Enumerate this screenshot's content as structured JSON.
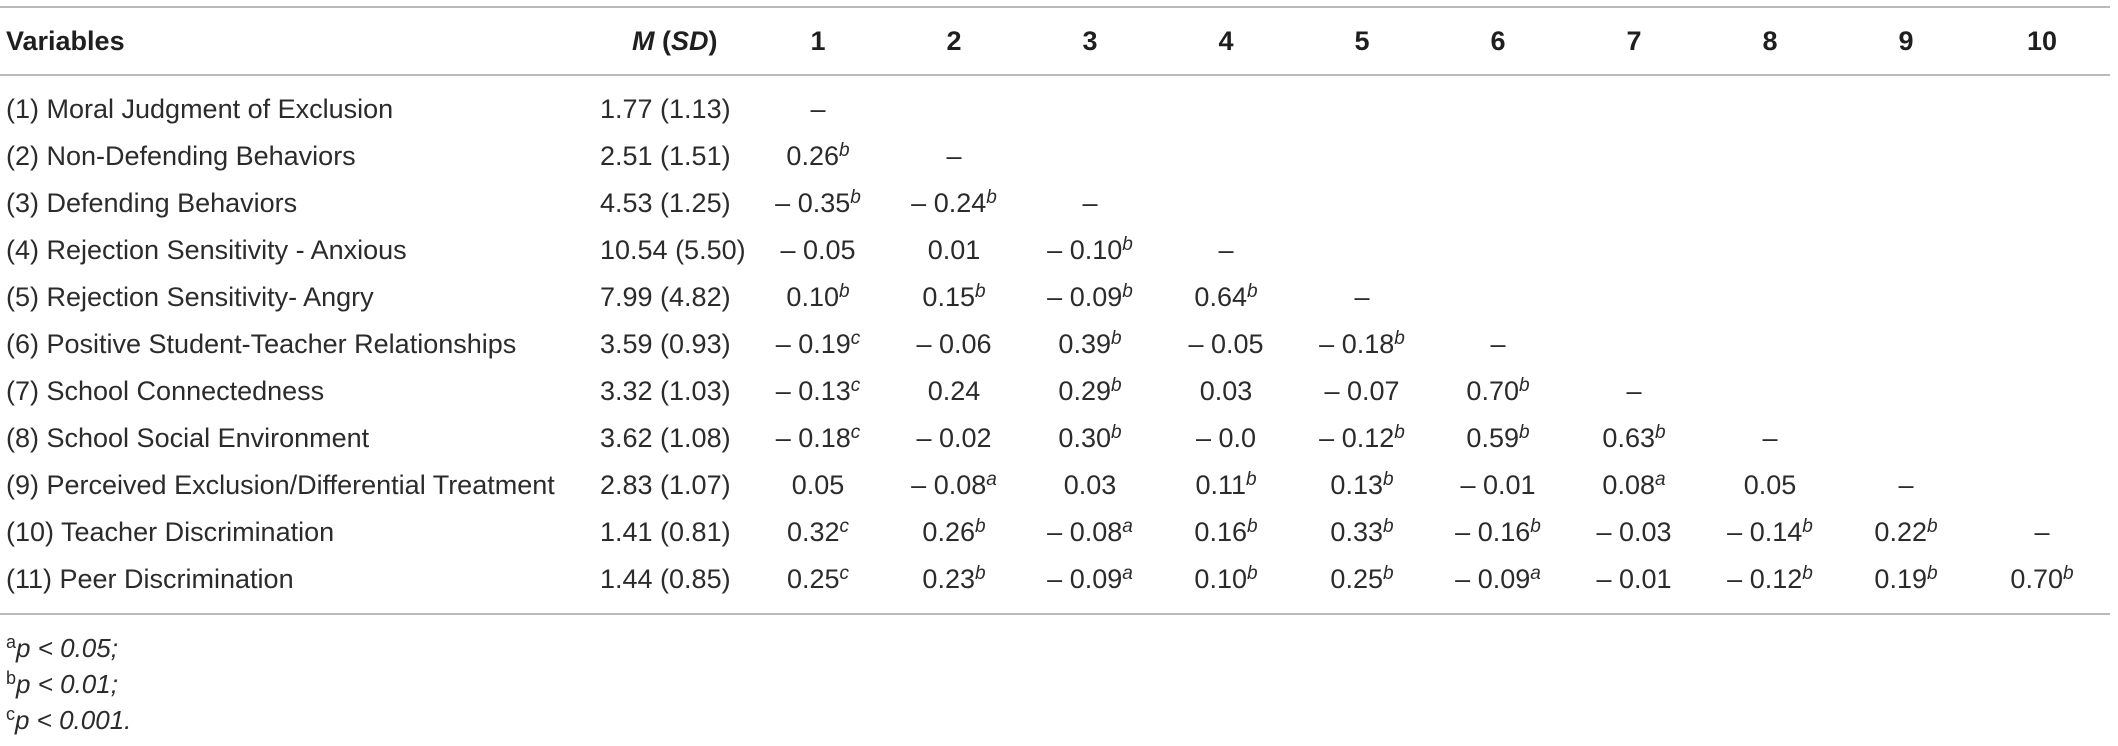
{
  "table": {
    "header": {
      "variables": "Variables",
      "m_label": "M",
      "sd_label": "SD",
      "columns": [
        "1",
        "2",
        "3",
        "4",
        "5",
        "6",
        "7",
        "8",
        "9",
        "10"
      ]
    },
    "rows": [
      {
        "label": "(1) Moral Judgment of Exclusion",
        "msd": "1.77 (1.13)",
        "cells": [
          {
            "v": "–",
            "s": ""
          }
        ]
      },
      {
        "label": "(2) Non-Defending Behaviors",
        "msd": "2.51 (1.51)",
        "cells": [
          {
            "v": "0.26",
            "s": "b"
          },
          {
            "v": "–",
            "s": ""
          }
        ]
      },
      {
        "label": "(3) Defending Behaviors",
        "msd": "4.53 (1.25)",
        "cells": [
          {
            "v": "– 0.35",
            "s": "b"
          },
          {
            "v": "– 0.24",
            "s": "b"
          },
          {
            "v": "–",
            "s": ""
          }
        ]
      },
      {
        "label": "(4) Rejection Sensitivity - Anxious",
        "msd": "10.54 (5.50)",
        "cells": [
          {
            "v": "– 0.05",
            "s": ""
          },
          {
            "v": "0.01",
            "s": ""
          },
          {
            "v": "– 0.10",
            "s": "b"
          },
          {
            "v": "–",
            "s": ""
          }
        ]
      },
      {
        "label": "(5) Rejection Sensitivity- Angry",
        "msd": "7.99 (4.82)",
        "cells": [
          {
            "v": "0.10",
            "s": "b"
          },
          {
            "v": "0.15",
            "s": "b"
          },
          {
            "v": "– 0.09",
            "s": "b"
          },
          {
            "v": "0.64",
            "s": "b"
          },
          {
            "v": "–",
            "s": ""
          }
        ]
      },
      {
        "label": "(6) Positive Student-Teacher Relationships",
        "msd": "3.59 (0.93)",
        "cells": [
          {
            "v": "– 0.19",
            "s": "c"
          },
          {
            "v": "– 0.06",
            "s": ""
          },
          {
            "v": "0.39",
            "s": "b"
          },
          {
            "v": "– 0.05",
            "s": ""
          },
          {
            "v": "– 0.18",
            "s": "b"
          },
          {
            "v": "–",
            "s": ""
          }
        ]
      },
      {
        "label": "(7) School Connectedness",
        "msd": "3.32 (1.03)",
        "cells": [
          {
            "v": "– 0.13",
            "s": "c"
          },
          {
            "v": "0.24",
            "s": ""
          },
          {
            "v": "0.29",
            "s": "b"
          },
          {
            "v": "0.03",
            "s": ""
          },
          {
            "v": "– 0.07",
            "s": ""
          },
          {
            "v": "0.70",
            "s": "b"
          },
          {
            "v": "–",
            "s": ""
          }
        ]
      },
      {
        "label": "(8) School Social Environment",
        "msd": "3.62 (1.08)",
        "cells": [
          {
            "v": "– 0.18",
            "s": "c"
          },
          {
            "v": "– 0.02",
            "s": ""
          },
          {
            "v": "0.30",
            "s": "b"
          },
          {
            "v": "– 0.0",
            "s": ""
          },
          {
            "v": "– 0.12",
            "s": "b"
          },
          {
            "v": "0.59",
            "s": "b"
          },
          {
            "v": "0.63",
            "s": "b"
          },
          {
            "v": "–",
            "s": ""
          }
        ]
      },
      {
        "label": "(9) Perceived Exclusion/Differential Treatment",
        "msd": "2.83 (1.07)",
        "cells": [
          {
            "v": "0.05",
            "s": ""
          },
          {
            "v": "– 0.08",
            "s": "a"
          },
          {
            "v": "0.03",
            "s": ""
          },
          {
            "v": "0.11",
            "s": "b"
          },
          {
            "v": "0.13",
            "s": "b"
          },
          {
            "v": "– 0.01",
            "s": ""
          },
          {
            "v": "0.08",
            "s": "a"
          },
          {
            "v": "0.05",
            "s": ""
          },
          {
            "v": "–",
            "s": ""
          }
        ]
      },
      {
        "label": "(10) Teacher Discrimination",
        "msd": "1.41 (0.81)",
        "cells": [
          {
            "v": "0.32",
            "s": "c"
          },
          {
            "v": "0.26",
            "s": "b"
          },
          {
            "v": "– 0.08",
            "s": "a"
          },
          {
            "v": "0.16",
            "s": "b"
          },
          {
            "v": "0.33",
            "s": "b"
          },
          {
            "v": "– 0.16",
            "s": "b"
          },
          {
            "v": "– 0.03",
            "s": ""
          },
          {
            "v": "– 0.14",
            "s": "b"
          },
          {
            "v": "0.22",
            "s": "b"
          },
          {
            "v": "–",
            "s": ""
          }
        ]
      },
      {
        "label": "(11) Peer Discrimination",
        "msd": "1.44 (0.85)",
        "cells": [
          {
            "v": "0.25",
            "s": "c"
          },
          {
            "v": "0.23",
            "s": "b"
          },
          {
            "v": "– 0.09",
            "s": "a"
          },
          {
            "v": "0.10",
            "s": "b"
          },
          {
            "v": "0.25",
            "s": "b"
          },
          {
            "v": "– 0.09",
            "s": "a"
          },
          {
            "v": "– 0.01",
            "s": ""
          },
          {
            "v": "– 0.12",
            "s": "b"
          },
          {
            "v": "0.19",
            "s": "b"
          },
          {
            "v": "0.70",
            "s": "b"
          }
        ]
      }
    ]
  },
  "notes": [
    {
      "mark": "a",
      "text": "p < 0.05;"
    },
    {
      "mark": "b",
      "text": "p < 0.01;"
    },
    {
      "mark": "c",
      "text": "p < 0.001."
    }
  ]
}
